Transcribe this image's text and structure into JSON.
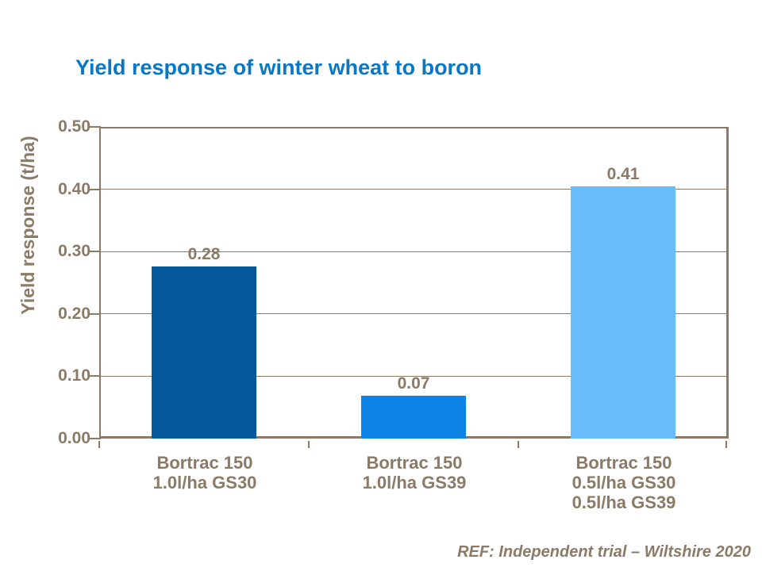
{
  "title": "Yield response of winter wheat to boron",
  "footer": {
    "ref_text": "REF: Independent trial – Wiltshire 2020"
  },
  "colors": {
    "background": "#FFFFFF",
    "title_blue": "#0878C4",
    "axis_brown": "#8A7A66",
    "bar_dark_blue": "#05599B",
    "bar_mid_blue": "#0C83E6",
    "bar_light_blue": "#68BCFA"
  },
  "chart_data": {
    "type": "bar",
    "title": "Yield response of winter wheat to boron",
    "xlabel": "",
    "ylabel": "Yield response (t/ha)",
    "ylim": [
      0,
      0.5
    ],
    "ytick_interval": 0.1,
    "yticks": [
      0.5,
      0.4,
      0.3,
      0.2,
      0.1,
      0.0
    ],
    "ytick_labels": [
      "0.50",
      "0.40",
      "0.30",
      "0.20",
      "0.10",
      "0.00"
    ],
    "grid": true,
    "legend": false,
    "categories": [
      "Bortrac 150 1.0l/ha GS30",
      "Bortrac 150 1.0l/ha GS39",
      "Bortrac 150 0.5l/ha GS30 0.5l/ha GS39"
    ],
    "values": [
      0.28,
      0.07,
      0.41
    ],
    "bars": [
      {
        "lines": [
          "Bortrac 150",
          "1.0l/ha GS30"
        ],
        "value": 0.28,
        "label": "0.28",
        "color": "#05599B"
      },
      {
        "lines": [
          "Bortrac 150",
          "1.0l/ha GS39"
        ],
        "value": 0.07,
        "label": "0.07",
        "color": "#0C83E6"
      },
      {
        "lines": [
          "Bortrac 150",
          "0.5l/ha GS30",
          "0.5l/ha GS39"
        ],
        "value": 0.41,
        "label": "0.41",
        "color": "#68BCFA"
      }
    ],
    "annotation": "REF: Independent trial – Wiltshire 2020"
  }
}
